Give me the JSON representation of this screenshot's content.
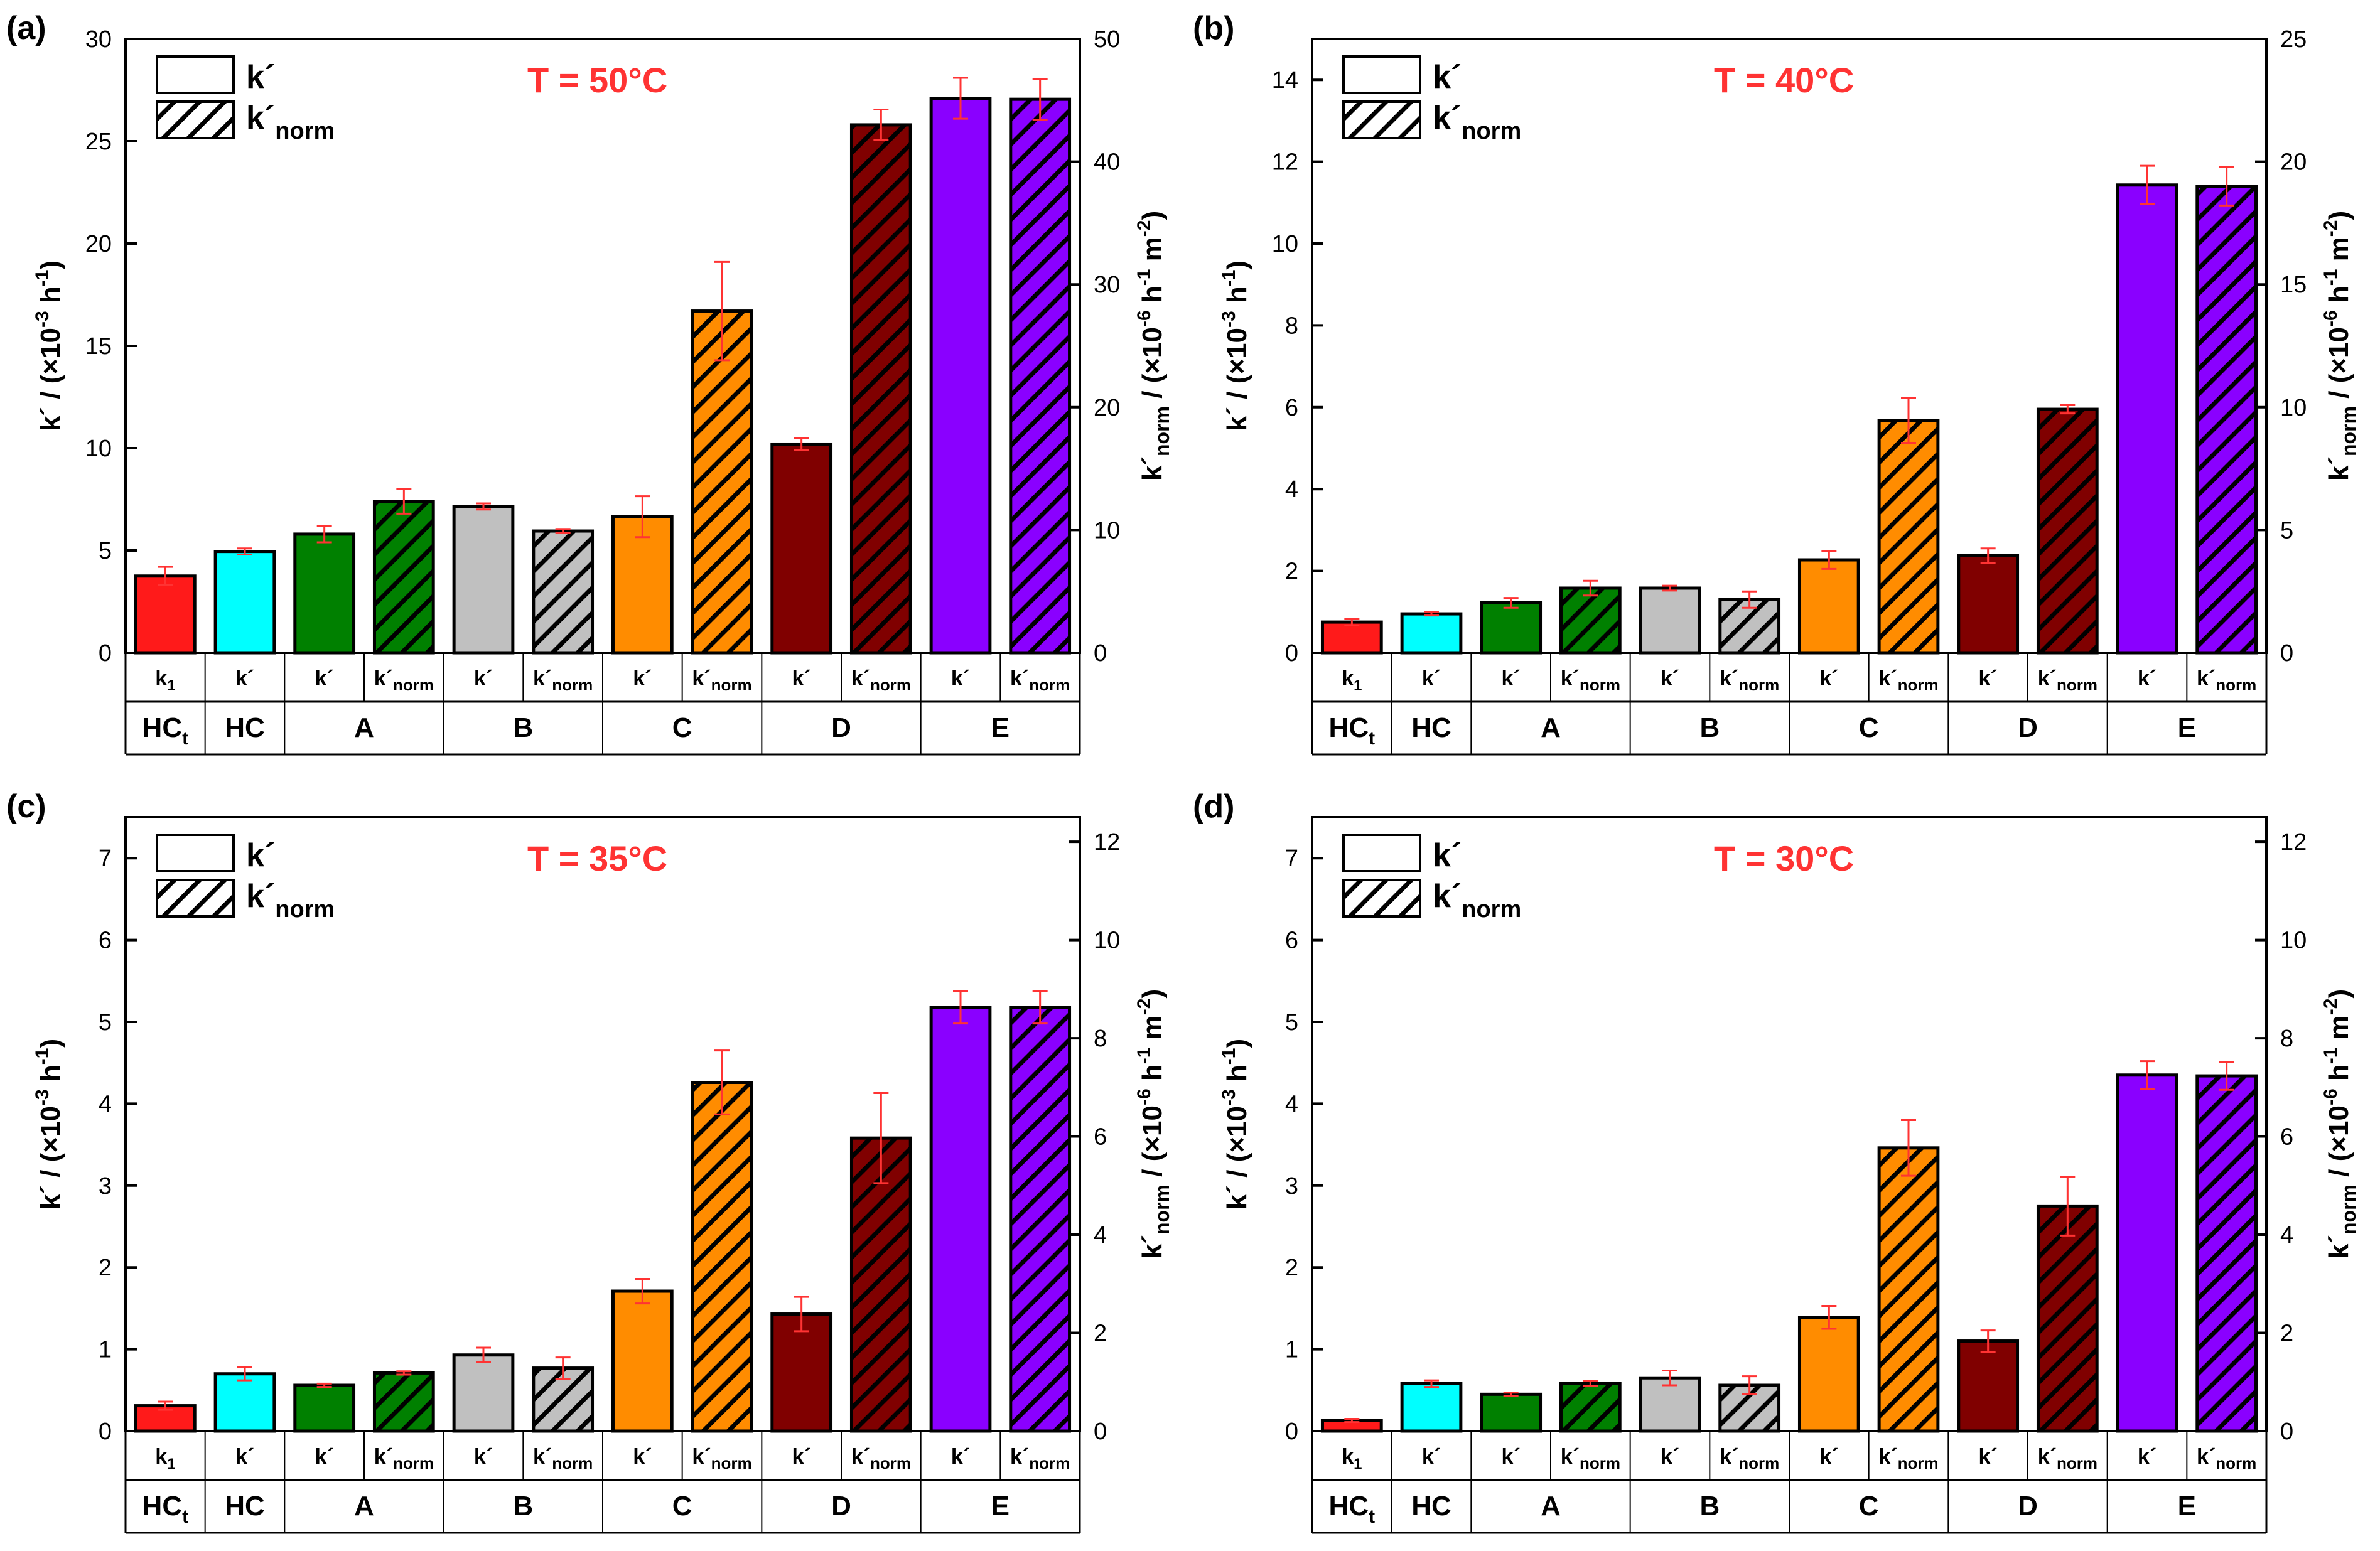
{
  "colors": {
    "HCt": "#ff1a1a",
    "HC": "#00ffff",
    "A": "#008000",
    "B": "#c0c0c0",
    "C": "#ff8c00",
    "D": "#800000",
    "E": "#8a00ff",
    "error": "#ff3333",
    "temp_label": "#ff3333"
  },
  "bar_order": [
    {
      "sub": "k1",
      "group": "HCt",
      "kind": "k"
    },
    {
      "sub": "k´",
      "group": "HC",
      "kind": "k"
    },
    {
      "sub": "k´",
      "group": "A",
      "kind": "k"
    },
    {
      "sub": "k´norm",
      "group": "A",
      "kind": "norm"
    },
    {
      "sub": "k´",
      "group": "B",
      "kind": "k"
    },
    {
      "sub": "k´norm",
      "group": "B",
      "kind": "norm"
    },
    {
      "sub": "k´",
      "group": "C",
      "kind": "k"
    },
    {
      "sub": "k´norm",
      "group": "C",
      "kind": "norm"
    },
    {
      "sub": "k´",
      "group": "D",
      "kind": "k"
    },
    {
      "sub": "k´norm",
      "group": "D",
      "kind": "norm"
    },
    {
      "sub": "k´",
      "group": "E",
      "kind": "k"
    },
    {
      "sub": "k´norm",
      "group": "E",
      "kind": "norm"
    }
  ],
  "sublabels": {
    "k1_main": "k",
    "k1_sub": "1",
    "k": "k´",
    "knorm_main": "k´",
    "knorm_sub": "norm"
  },
  "groups": [
    {
      "name": "HC",
      "sub": "t",
      "span": 1
    },
    {
      "name": "HC",
      "sub": "",
      "span": 1
    },
    {
      "name": "A",
      "sub": "",
      "span": 2
    },
    {
      "name": "B",
      "sub": "",
      "span": 2
    },
    {
      "name": "C",
      "sub": "",
      "span": 2
    },
    {
      "name": "D",
      "sub": "",
      "span": 2
    },
    {
      "name": "E",
      "sub": "",
      "span": 2
    }
  ],
  "legend": {
    "k_label": "k´",
    "norm_main": "k´",
    "norm_sub": "norm"
  },
  "axis_labels": {
    "left_main": "k´ / (×10",
    "left_exp1": "-3",
    "left_mid": " h",
    "left_exp2": "-1",
    "left_end": ")",
    "right_main": "k´",
    "right_sub": "norm",
    "right_mid": " / (×10",
    "right_exp1": "-6",
    "right_mid2": " h",
    "right_exp2": "-1",
    "right_mid3": " m",
    "right_exp3": "-2",
    "right_end": ")"
  },
  "chart_data": [
    {
      "type": "bar",
      "panel": "(a)",
      "title": "T = 50°C",
      "ylim": [
        0,
        30
      ],
      "yticks": [
        0,
        5,
        10,
        15,
        20,
        25,
        30
      ],
      "y2lim": [
        0,
        50
      ],
      "y2ticks": [
        0,
        10,
        20,
        30,
        40,
        50
      ],
      "values": [
        3.75,
        4.95,
        5.8,
        7.4,
        7.15,
        5.95,
        6.65,
        16.7,
        10.2,
        25.8,
        27.1,
        27.05
      ],
      "errors": [
        0.45,
        0.15,
        0.4,
        0.6,
        0.15,
        0.1,
        1.0,
        2.4,
        0.3,
        0.75,
        1.0,
        1.0
      ]
    },
    {
      "type": "bar",
      "panel": "(b)",
      "title": "T = 40°C",
      "ylim": [
        0,
        15
      ],
      "yticks": [
        0,
        2,
        4,
        6,
        8,
        10,
        12,
        14
      ],
      "y2lim": [
        0,
        25
      ],
      "y2ticks": [
        0,
        5,
        10,
        15,
        20,
        25
      ],
      "values": [
        0.75,
        0.95,
        1.22,
        1.58,
        1.58,
        1.3,
        2.27,
        5.68,
        2.37,
        5.95,
        11.43,
        11.4
      ],
      "errors": [
        0.08,
        0.04,
        0.12,
        0.18,
        0.06,
        0.2,
        0.22,
        0.55,
        0.18,
        0.1,
        0.47,
        0.47
      ]
    },
    {
      "type": "bar",
      "panel": "(c)",
      "title": "T = 35°C",
      "ylim": [
        0,
        7.5
      ],
      "yticks": [
        0,
        1,
        2,
        3,
        4,
        5,
        6,
        7
      ],
      "y2lim": [
        0,
        12.5
      ],
      "y2ticks": [
        0,
        2,
        4,
        6,
        8,
        10,
        12
      ],
      "values": [
        0.31,
        0.7,
        0.56,
        0.71,
        0.93,
        0.77,
        1.71,
        4.26,
        1.43,
        3.58,
        5.18,
        5.18
      ],
      "errors": [
        0.05,
        0.08,
        0.02,
        0.02,
        0.09,
        0.13,
        0.15,
        0.39,
        0.21,
        0.55,
        0.2,
        0.2
      ]
    },
    {
      "type": "bar",
      "panel": "(d)",
      "title": "T = 30°C",
      "ylim": [
        0,
        7.5
      ],
      "yticks": [
        0,
        1,
        2,
        3,
        4,
        5,
        6,
        7
      ],
      "y2lim": [
        0,
        12.5
      ],
      "y2ticks": [
        0,
        2,
        4,
        6,
        8,
        10,
        12
      ],
      "values": [
        0.13,
        0.58,
        0.45,
        0.58,
        0.65,
        0.56,
        1.39,
        3.46,
        1.1,
        2.75,
        4.35,
        4.34
      ],
      "errors": [
        0.02,
        0.04,
        0.02,
        0.03,
        0.09,
        0.11,
        0.14,
        0.34,
        0.13,
        0.36,
        0.17,
        0.17
      ]
    }
  ]
}
